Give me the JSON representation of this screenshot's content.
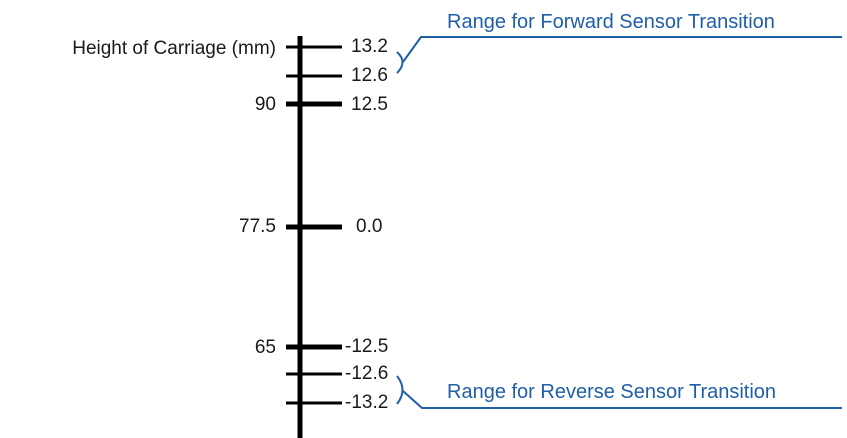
{
  "axis_title": "Height of Carriage (mm)",
  "left_ticks": [
    {
      "label": "90"
    },
    {
      "label": "77.5"
    },
    {
      "label": "65"
    }
  ],
  "right_ticks": [
    {
      "label": "13.2"
    },
    {
      "label": "12.6"
    },
    {
      "label": "12.5"
    },
    {
      "label": "0.0"
    },
    {
      "label": "-12.5"
    },
    {
      "label": "-12.6"
    },
    {
      "label": "-13.2"
    }
  ],
  "annotations": {
    "forward": "Range for Forward Sensor Transition",
    "reverse": "Range for Reverse Sensor Transition"
  },
  "colors": {
    "line": "#000000",
    "annotation": "#1f5fa8"
  }
}
